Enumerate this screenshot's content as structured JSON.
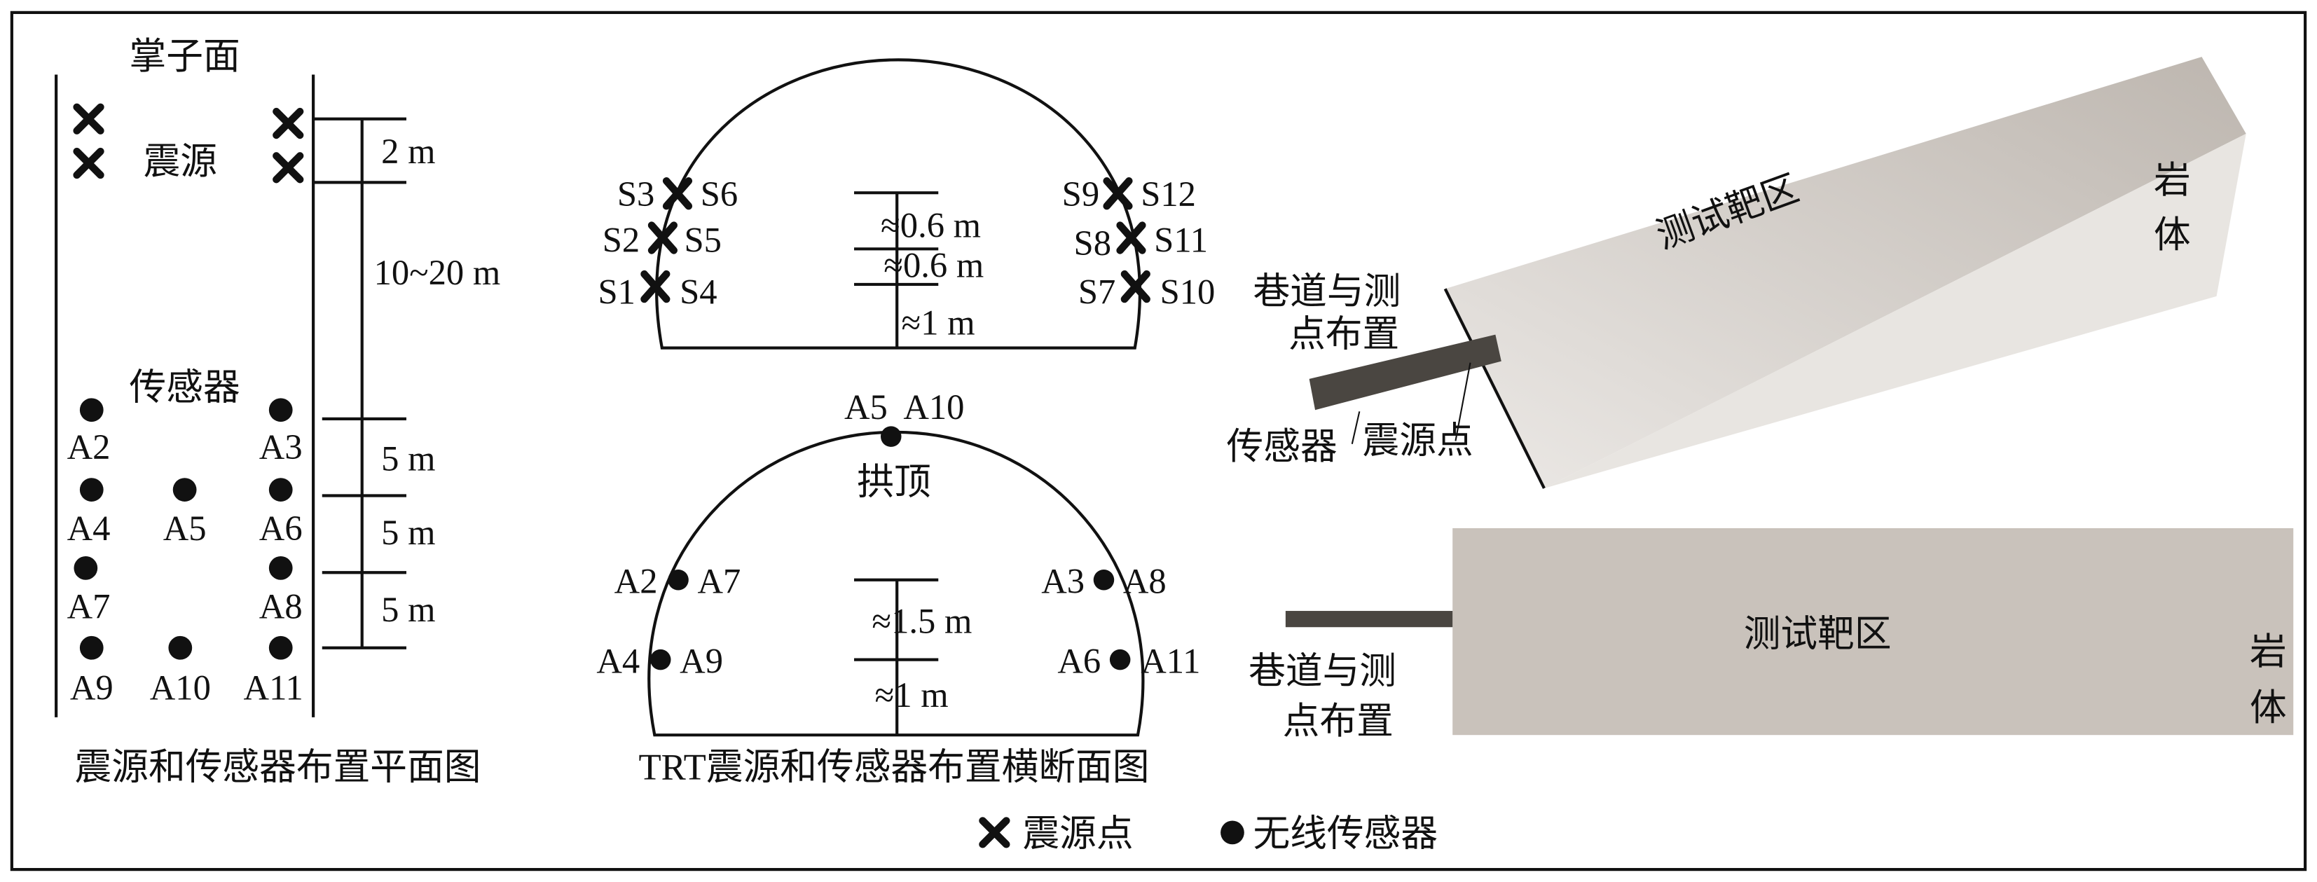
{
  "plan": {
    "face_label": "掌子面",
    "source_label": "震源",
    "sensor_label": "传感器",
    "dims": [
      "2 m",
      "10~20 m",
      "5 m",
      "5 m",
      "5 m"
    ],
    "sensors": [
      "A2",
      "A3",
      "A4",
      "A5",
      "A6",
      "A7",
      "A8",
      "A9",
      "A10",
      "A11"
    ],
    "caption": "震源和传感器布置平面图"
  },
  "section": {
    "sources_left": [
      "S3",
      "S6",
      "S2",
      "S5",
      "S1",
      "S4"
    ],
    "sources_right": [
      "S9",
      "S12",
      "S8",
      "S11",
      "S7",
      "S10"
    ],
    "source_dims": [
      "≈0.6 m",
      "≈0.6 m",
      "≈1 m"
    ],
    "crown_sensor": "A5  A10",
    "crown_label": "拱顶",
    "sensors": [
      "A2",
      "A7",
      "A3",
      "A8",
      "A4",
      "A9",
      "A6",
      "A11"
    ],
    "sensor_dims": [
      "≈1.5 m",
      "≈1 m"
    ],
    "caption": "TRT震源和传感器布置横断面图"
  },
  "model3d": {
    "target_label": "测试靶区",
    "rock_label": [
      "岩",
      "体"
    ],
    "tunnel_label": [
      "巷道与测",
      "点布置"
    ],
    "sensor_label": "传感器",
    "source_label": "震源点"
  },
  "side_view": {
    "target_label": "测试靶区",
    "rock_label": [
      "岩",
      "体"
    ],
    "tunnel_label": [
      "巷道与测",
      "点布置"
    ]
  },
  "legend": {
    "source": "震源点",
    "sensor": "无线传感器"
  },
  "colors": {
    "box": "#d8d3ce",
    "side": "#c9c2bb",
    "pipe": "#4a4641"
  }
}
